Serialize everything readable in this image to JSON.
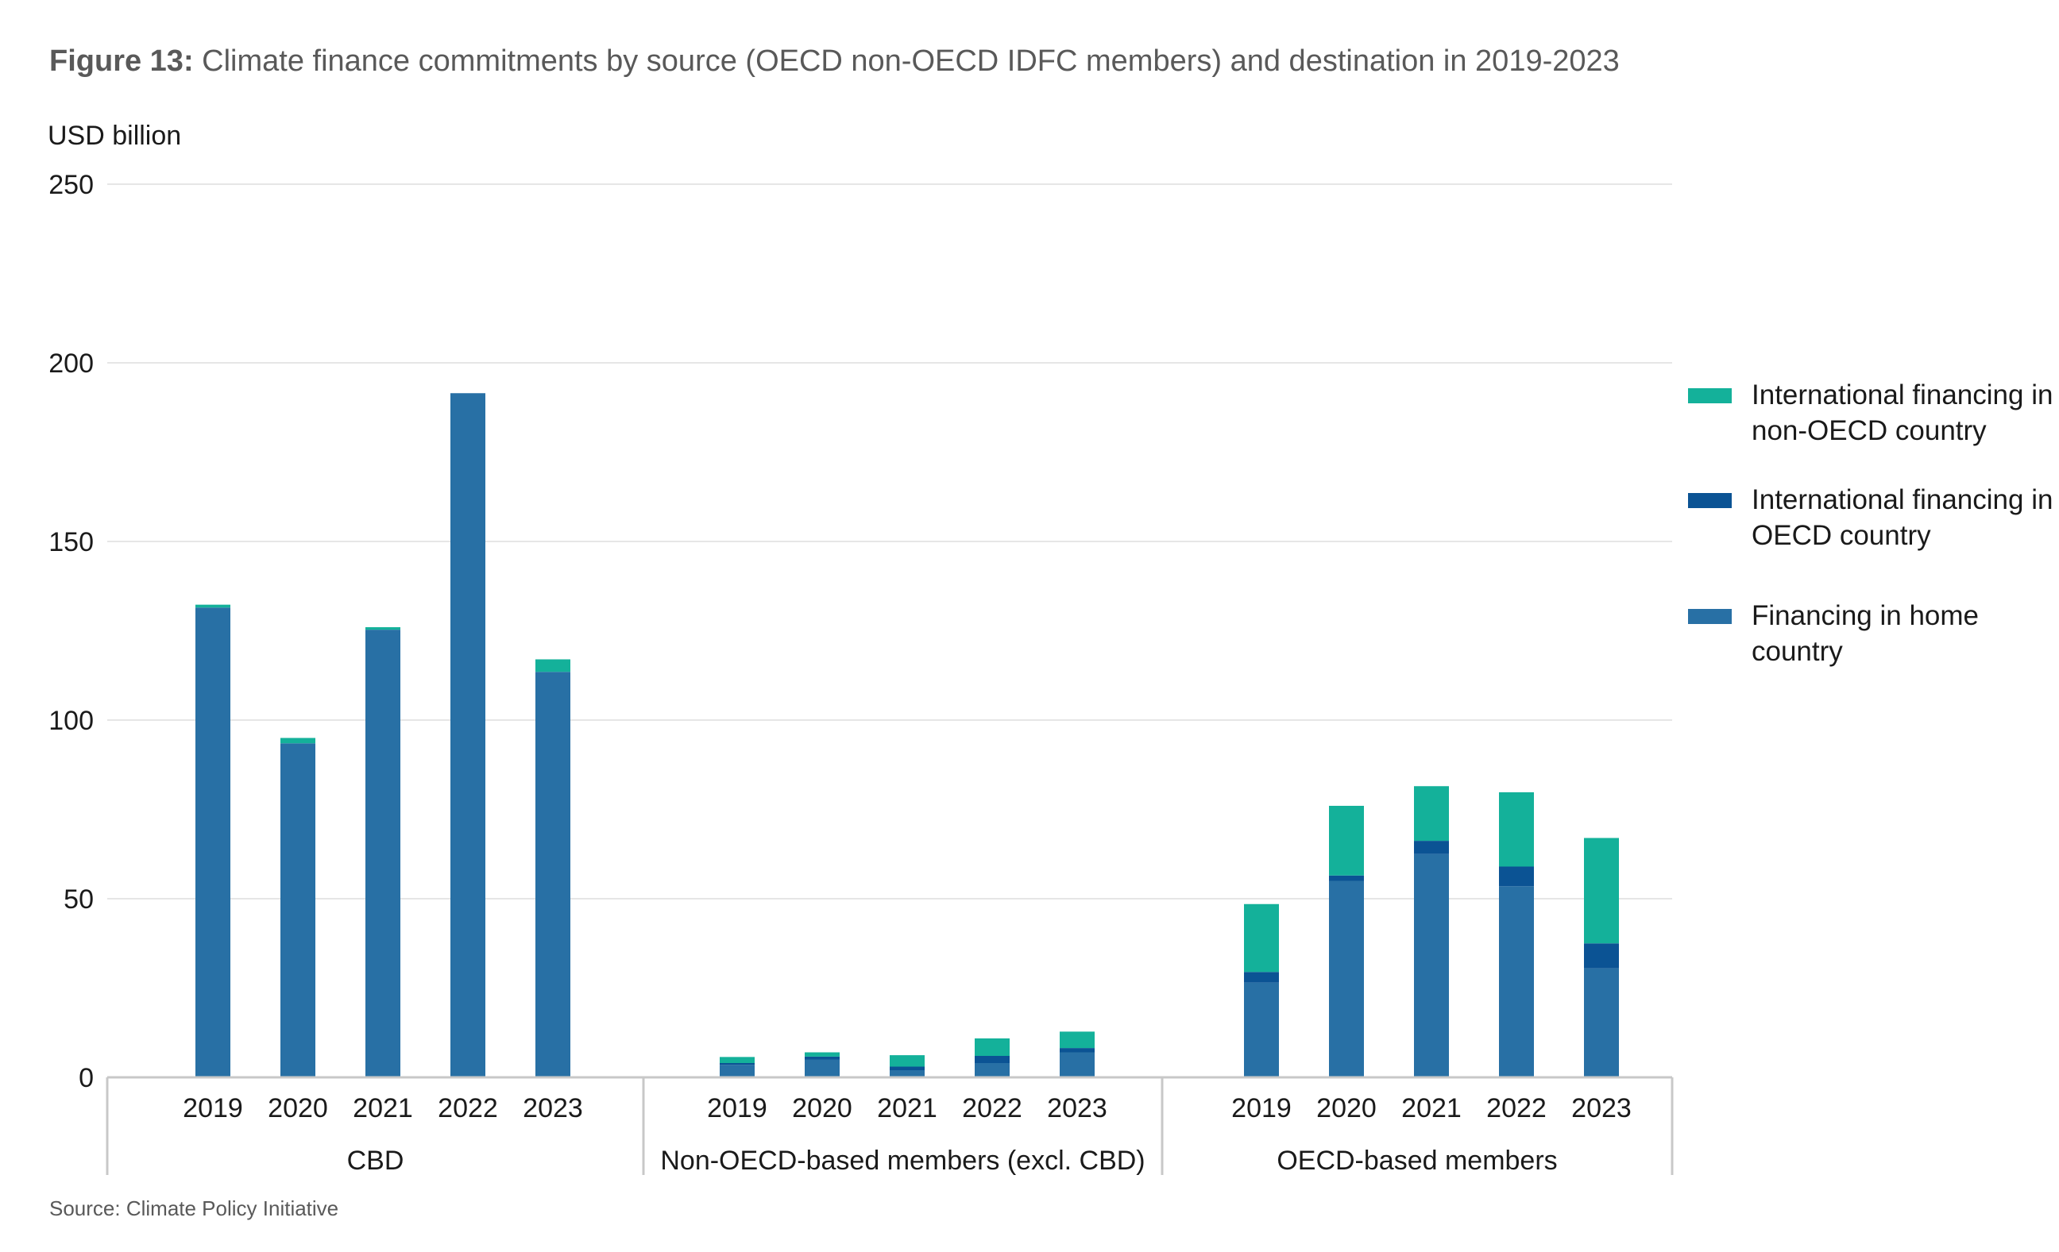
{
  "title": {
    "prefix": "Figure 13:",
    "text": " Climate finance commitments by source (OECD non-OECD IDFC members) and destination in 2019-2023"
  },
  "source": "Source: Climate Policy Initiative",
  "colors": {
    "home": "#2870A5",
    "oecd": "#0B5394",
    "nonoecd": "#14B19A",
    "grid": "#e6e6e6",
    "axis": "#c8c8c8"
  },
  "legend": [
    {
      "key": "nonoecd",
      "label": "International financing in non-OECD country",
      "color": "#14B19A"
    },
    {
      "key": "oecd",
      "label": "International financing in OECD country",
      "color": "#0B5394"
    },
    {
      "key": "home",
      "label": "Financing in home country",
      "color": "#2870A5"
    }
  ],
  "chart_data": {
    "type": "bar",
    "stacked": true,
    "ylabel": "USD billion",
    "ylim": [
      0,
      250
    ],
    "yticks": [
      0,
      50,
      100,
      150,
      200,
      250
    ],
    "grid": true,
    "legend_position": "right",
    "groups": [
      {
        "name": "CBD",
        "categories": [
          "2019",
          "2020",
          "2021",
          "2022",
          "2023"
        ],
        "series": [
          {
            "name": "Financing in home country",
            "key": "home",
            "values": [
              131.5,
              93.5,
              125.3,
              191.5,
              113.5
            ]
          },
          {
            "name": "International financing in OECD country",
            "key": "oecd",
            "values": [
              0,
              0,
              0,
              0,
              0
            ]
          },
          {
            "name": "International financing in non-OECD country",
            "key": "nonoecd",
            "values": [
              0.8,
              1.5,
              0.7,
              0,
              3.5
            ]
          }
        ]
      },
      {
        "name": "Non-OECD-based members (excl. CBD)",
        "categories": [
          "2019",
          "2020",
          "2021",
          "2022",
          "2023"
        ],
        "series": [
          {
            "name": "Financing in home country",
            "key": "home",
            "values": [
              3.5,
              5.0,
              2.0,
              4.0,
              7.0
            ]
          },
          {
            "name": "International financing in OECD country",
            "key": "oecd",
            "values": [
              0.5,
              0.8,
              1.0,
              2.0,
              1.2
            ]
          },
          {
            "name": "International financing in non-OECD country",
            "key": "nonoecd",
            "values": [
              1.7,
              1.2,
              3.2,
              4.9,
              4.6
            ]
          }
        ]
      },
      {
        "name": "OECD-based members",
        "categories": [
          "2019",
          "2020",
          "2021",
          "2022",
          "2023"
        ],
        "series": [
          {
            "name": "Financing in home country",
            "key": "home",
            "values": [
              26.5,
              55.0,
              62.5,
              53.5,
              30.5
            ]
          },
          {
            "name": "International financing in OECD country",
            "key": "oecd",
            "values": [
              3.0,
              1.5,
              3.7,
              5.5,
              7.0
            ]
          },
          {
            "name": "International financing in non-OECD country",
            "key": "nonoecd",
            "values": [
              19.0,
              19.5,
              15.3,
              20.8,
              29.5
            ]
          }
        ]
      }
    ]
  }
}
